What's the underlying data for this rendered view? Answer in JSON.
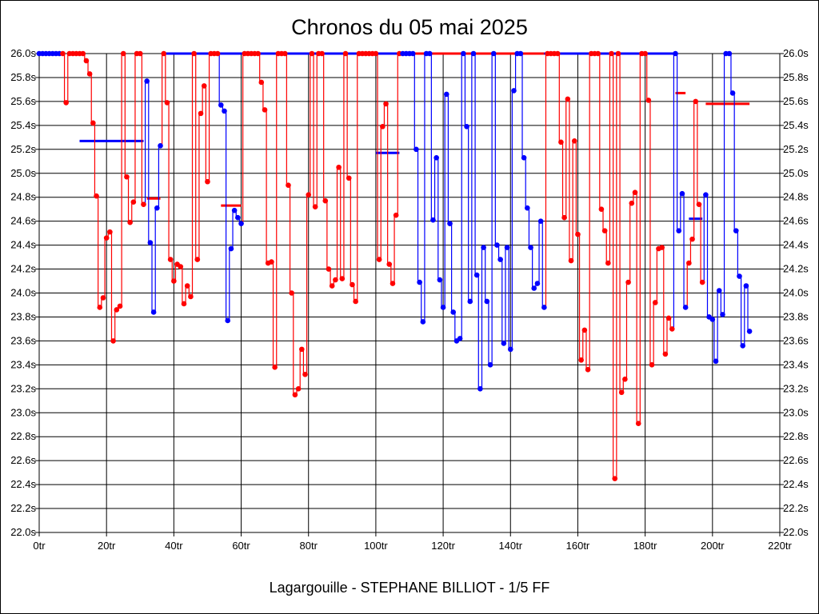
{
  "chart_data": {
    "type": "line",
    "title": "Chronos du 05 mai 2025",
    "footer": "Lagargouille - STEPHANE BILLIOT - 1/5 FF",
    "xlabel": "",
    "ylabel": "",
    "xlim": [
      0,
      220
    ],
    "ylim": [
      22.0,
      26.0
    ],
    "grid": true,
    "x_ticks": [
      "0tr",
      "20tr",
      "40tr",
      "60tr",
      "80tr",
      "100tr",
      "120tr",
      "140tr",
      "160tr",
      "180tr",
      "200tr",
      "220tr"
    ],
    "x_tick_values": [
      0,
      20,
      40,
      60,
      80,
      100,
      120,
      140,
      160,
      180,
      200,
      220
    ],
    "y_ticks": [
      "22.0s",
      "22.2s",
      "22.4s",
      "22.6s",
      "22.8s",
      "23.0s",
      "23.2s",
      "23.4s",
      "23.6s",
      "23.8s",
      "24.0s",
      "24.2s",
      "24.4s",
      "24.6s",
      "24.8s",
      "25.0s",
      "25.2s",
      "25.4s",
      "25.6s",
      "25.8s",
      "26.0s"
    ],
    "y_tick_values": [
      22.0,
      22.2,
      22.4,
      22.6,
      22.8,
      23.0,
      23.2,
      23.4,
      23.6,
      23.8,
      24.0,
      24.2,
      24.4,
      24.6,
      24.8,
      25.0,
      25.2,
      25.4,
      25.6,
      25.8,
      26.0
    ],
    "colors": {
      "red": "#ff0000",
      "blue": "#0000ff"
    },
    "note_clip": "values of 26.0 are clipped at the top of the axis",
    "stints": [
      {
        "color": "blue",
        "start_lap": 0,
        "values": [
          26,
          26,
          26,
          26,
          26,
          26,
          26
        ]
      },
      {
        "color": "red",
        "start_lap": 7,
        "values": [
          26,
          25.59,
          26,
          26,
          26,
          26,
          26,
          25.94,
          25.83,
          25.42,
          24.81,
          23.88,
          23.96,
          24.46,
          24.51,
          23.6,
          23.86,
          23.89,
          26,
          24.97,
          24.59,
          24.76,
          26,
          26,
          24.74
        ]
      },
      {
        "color": "blue",
        "start_lap": 32,
        "values": [
          25.77,
          24.42,
          23.84,
          24.71,
          25.23
        ]
      },
      {
        "color": "red",
        "start_lap": 37,
        "values": [
          26,
          25.59,
          24.28,
          24.1,
          24.24,
          24.22,
          23.91,
          24.06,
          23.97,
          26,
          24.28,
          25.5,
          25.73,
          24.93,
          26,
          26,
          26
        ]
      },
      {
        "color": "blue",
        "start_lap": 54,
        "values": [
          25.57,
          25.52,
          23.77,
          24.37,
          24.69,
          24.63,
          24.58
        ]
      },
      {
        "color": "red",
        "start_lap": 61,
        "values": [
          26,
          26,
          26,
          26,
          26,
          25.76,
          25.53,
          24.25,
          24.26,
          23.38,
          26,
          26,
          26,
          24.9,
          24.0,
          23.15,
          23.2,
          23.53,
          23.32,
          24.82,
          26,
          24.72,
          26,
          26,
          24.77,
          24.2,
          24.06,
          24.11,
          25.05,
          24.12,
          26,
          24.96,
          24.07,
          23.93,
          26,
          26,
          26,
          26,
          26,
          26,
          24.28,
          25.39,
          25.58,
          24.24,
          24.08,
          24.65,
          26
        ]
      },
      {
        "color": "blue",
        "start_lap": 108,
        "values": [
          26,
          26,
          26,
          26,
          25.2,
          24.09,
          23.76,
          26,
          26,
          24.61,
          25.13,
          24.11,
          23.88,
          25.66,
          24.58,
          23.84,
          23.6,
          23.62,
          26,
          25.39,
          23.93,
          26,
          24.15,
          23.2,
          24.38,
          23.93,
          23.4,
          26,
          24.4,
          24.28,
          23.58,
          24.38,
          23.53,
          25.69,
          26,
          26,
          25.13,
          24.71,
          24.38,
          24.04,
          24.08,
          24.6,
          23.88
        ]
      },
      {
        "color": "red",
        "start_lap": 151,
        "values": [
          26,
          26,
          26,
          26,
          25.26,
          24.63,
          25.62,
          24.27,
          25.27,
          24.49,
          23.44,
          23.69,
          23.36,
          26,
          26,
          26,
          24.7,
          24.52,
          24.25,
          26,
          22.45,
          26,
          23.17,
          23.28,
          24.09,
          24.75,
          24.84,
          22.91,
          26,
          26,
          25.61,
          23.4,
          23.92,
          24.37,
          24.38,
          23.49,
          23.79,
          23.7
        ]
      },
      {
        "color": "blue",
        "start_lap": 189,
        "values": [
          26,
          24.52,
          24.83,
          23.88
        ]
      },
      {
        "color": "red",
        "start_lap": 193,
        "values": [
          24.25,
          24.45,
          25.6,
          24.74,
          24.09
        ]
      },
      {
        "color": "blue",
        "start_lap": 198,
        "values": [
          24.82,
          23.8,
          23.78,
          23.43,
          24.02,
          23.82,
          26,
          26,
          25.67,
          24.52,
          24.14,
          23.56,
          24.06,
          23.68
        ]
      }
    ],
    "averages": [
      {
        "color": "blue",
        "from": 12,
        "to": 31,
        "value": 25.27
      },
      {
        "color": "red",
        "from": 32,
        "to": 36,
        "value": 24.79
      },
      {
        "color": "blue",
        "from": 37,
        "to": 107,
        "value": 26.0
      },
      {
        "color": "red",
        "from": 54,
        "to": 60,
        "value": 24.73
      },
      {
        "color": "blue",
        "from": 100,
        "to": 107,
        "value": 25.17
      },
      {
        "color": "red",
        "from": 107,
        "to": 150,
        "value": 26.0
      },
      {
        "color": "blue",
        "from": 150,
        "to": 189,
        "value": 26.0
      },
      {
        "color": "red",
        "from": 189,
        "to": 192,
        "value": 25.67
      },
      {
        "color": "blue",
        "from": 193,
        "to": 197,
        "value": 24.62
      },
      {
        "color": "red",
        "from": 198,
        "to": 211,
        "value": 25.58
      }
    ]
  }
}
